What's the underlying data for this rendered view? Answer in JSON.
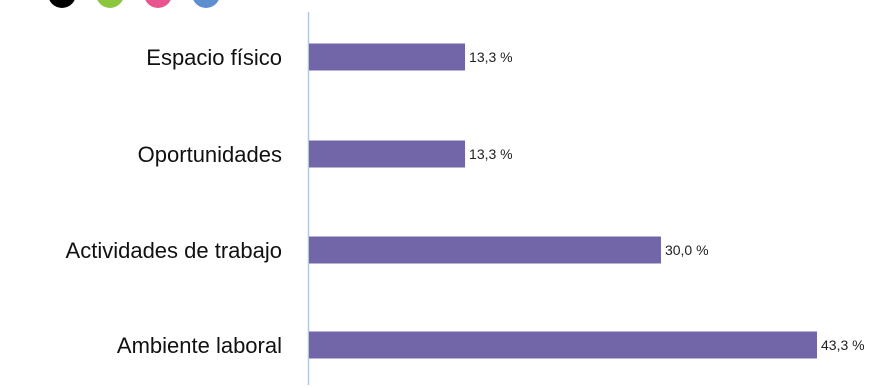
{
  "header_dots": {
    "colors": [
      "#000000",
      "#8cc63f",
      "#e8558f",
      "#5b8fd0"
    ],
    "icons": [
      "black-dot-icon",
      "green-dot-icon",
      "pink-dot-icon",
      "blue-dot-icon"
    ]
  },
  "chart_data": {
    "type": "bar",
    "orientation": "horizontal",
    "categories": [
      "Espacio físico",
      "Oportunidades",
      "Actividades de trabajo",
      "Ambiente laboral"
    ],
    "values": [
      13.3,
      13.3,
      30.0,
      43.3
    ],
    "value_labels": [
      "13,3 %",
      "13,3 %",
      "30,0 %",
      "43,3 %"
    ],
    "unit": "%",
    "title": "",
    "xlabel": "",
    "ylabel": "",
    "xlim": [
      0,
      43.3
    ],
    "grid": false,
    "legend": "none",
    "bar_color": "#7266a8",
    "axis_color": "#b7c7dd"
  }
}
